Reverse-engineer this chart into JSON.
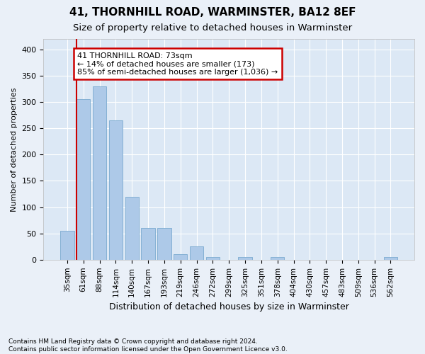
{
  "title": "41, THORNHILL ROAD, WARMINSTER, BA12 8EF",
  "subtitle": "Size of property relative to detached houses in Warminster",
  "xlabel": "Distribution of detached houses by size in Warminster",
  "ylabel": "Number of detached properties",
  "categories": [
    "35sqm",
    "61sqm",
    "88sqm",
    "114sqm",
    "140sqm",
    "167sqm",
    "193sqm",
    "219sqm",
    "246sqm",
    "272sqm",
    "299sqm",
    "325sqm",
    "351sqm",
    "378sqm",
    "404sqm",
    "430sqm",
    "457sqm",
    "483sqm",
    "509sqm",
    "536sqm",
    "562sqm"
  ],
  "values": [
    55,
    305,
    330,
    265,
    120,
    60,
    60,
    10,
    25,
    5,
    0,
    5,
    0,
    5,
    0,
    0,
    0,
    0,
    0,
    0,
    5
  ],
  "bar_color": "#adc9e8",
  "bar_edge_color": "#7aaad0",
  "property_line_color": "#cc0000",
  "property_line_x": 0.5,
  "annotation_text": "41 THORNHILL ROAD: 73sqm\n← 14% of detached houses are smaller (173)\n85% of semi-detached houses are larger (1,036) →",
  "annotation_box_color": "#ffffff",
  "annotation_box_edge_color": "#cc0000",
  "ylim": [
    0,
    420
  ],
  "yticks": [
    0,
    50,
    100,
    150,
    200,
    250,
    300,
    350,
    400
  ],
  "background_color": "#eaf0f8",
  "plot_bg_color": "#dce8f5",
  "grid_color": "#ffffff",
  "footnote": "Contains HM Land Registry data © Crown copyright and database right 2024.\nContains public sector information licensed under the Open Government Licence v3.0.",
  "title_fontsize": 11,
  "subtitle_fontsize": 9.5
}
